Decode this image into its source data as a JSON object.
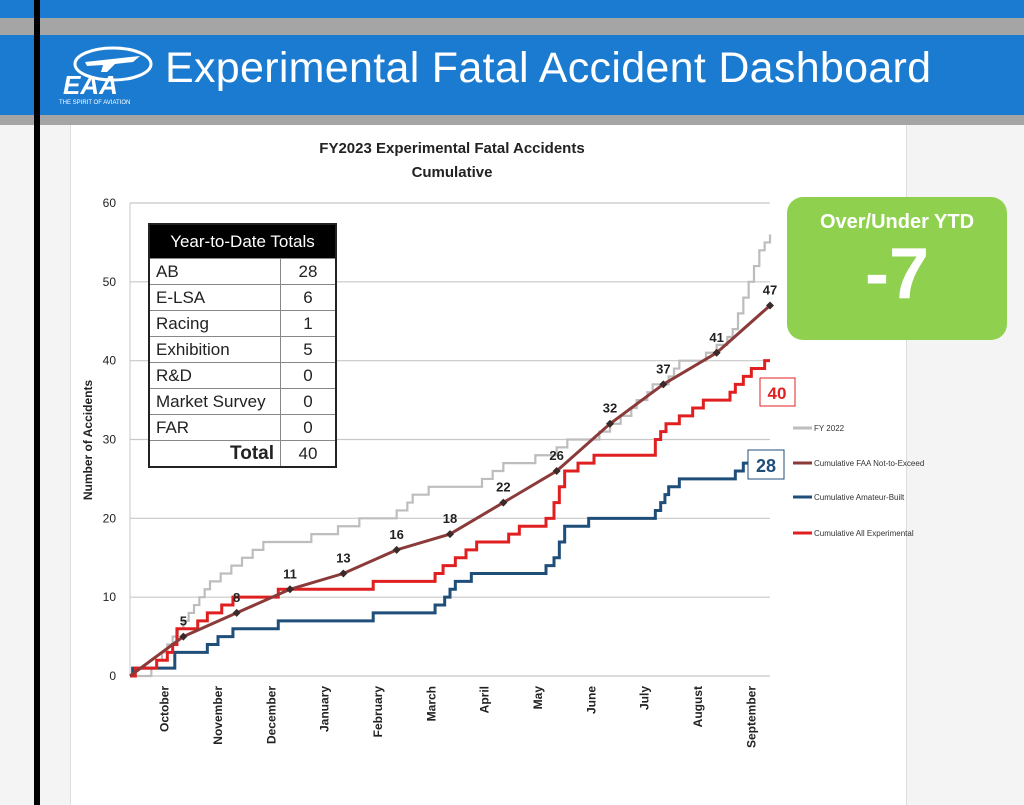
{
  "header": {
    "title": "Experimental Fatal Accident Dashboard",
    "logo_text": "EAA",
    "logo_tagline": "THE SPIRIT OF AVIATION"
  },
  "over_under": {
    "label": "Over/Under YTD",
    "value": "-7"
  },
  "ytd_table": {
    "title": "Year-to-Date Totals",
    "rows": [
      {
        "label": "AB",
        "value": "28"
      },
      {
        "label": "E-LSA",
        "value": "6"
      },
      {
        "label": "Racing",
        "value": "1"
      },
      {
        "label": "Exhibition",
        "value": "5"
      },
      {
        "label": "R&D",
        "value": "0"
      },
      {
        "label": "Market Survey",
        "value": "0"
      },
      {
        "label": "FAR",
        "value": "0"
      }
    ],
    "total_label": "Total",
    "total_value": "40"
  },
  "chart_data": {
    "type": "line",
    "title": "FY2023 Experimental Fatal Accidents",
    "subtitle": "Cumulative",
    "xlabel": "",
    "ylabel": "Number of Accidents",
    "ylim": [
      0,
      60
    ],
    "yticks": [
      0,
      10,
      20,
      30,
      40,
      50,
      60
    ],
    "xlim_months": [
      0,
      12
    ],
    "categories": [
      "October",
      "November",
      "December",
      "January",
      "February",
      "March",
      "April",
      "May",
      "June",
      "July",
      "August",
      "September"
    ],
    "legend_position": "right",
    "series": [
      {
        "name": "FY 2022",
        "color": "#bdbdbd",
        "step": true,
        "points": [
          [
            0,
            0
          ],
          [
            0.3,
            0
          ],
          [
            0.4,
            1
          ],
          [
            0.5,
            2
          ],
          [
            0.6,
            3
          ],
          [
            0.7,
            4
          ],
          [
            0.8,
            5
          ],
          [
            0.9,
            6
          ],
          [
            1.0,
            7
          ],
          [
            1.1,
            8
          ],
          [
            1.2,
            9
          ],
          [
            1.3,
            10
          ],
          [
            1.4,
            11
          ],
          [
            1.5,
            12
          ],
          [
            1.7,
            13
          ],
          [
            1.9,
            14
          ],
          [
            2.1,
            15
          ],
          [
            2.3,
            16
          ],
          [
            2.5,
            17
          ],
          [
            3.4,
            18
          ],
          [
            3.9,
            19
          ],
          [
            4.3,
            20
          ],
          [
            5.0,
            21
          ],
          [
            5.2,
            22
          ],
          [
            5.3,
            23
          ],
          [
            5.6,
            24
          ],
          [
            6.6,
            25
          ],
          [
            6.8,
            26
          ],
          [
            7.0,
            27
          ],
          [
            7.6,
            28
          ],
          [
            8.0,
            29
          ],
          [
            8.2,
            30
          ],
          [
            8.8,
            31
          ],
          [
            9.0,
            32
          ],
          [
            9.2,
            33
          ],
          [
            9.4,
            34
          ],
          [
            9.5,
            35
          ],
          [
            9.7,
            36
          ],
          [
            9.8,
            37
          ],
          [
            10.1,
            38
          ],
          [
            10.2,
            39
          ],
          [
            10.3,
            40
          ],
          [
            10.8,
            41
          ],
          [
            11.0,
            42
          ],
          [
            11.2,
            43
          ],
          [
            11.3,
            44
          ],
          [
            11.4,
            46
          ],
          [
            11.5,
            48
          ],
          [
            11.6,
            50
          ],
          [
            11.7,
            52
          ],
          [
            11.8,
            54
          ],
          [
            11.9,
            55
          ],
          [
            12.0,
            56
          ]
        ]
      },
      {
        "name": "Cumulative FAA Not-to-Exceed",
        "color": "#8b3a3a",
        "step": false,
        "points": [
          [
            0,
            0
          ],
          [
            1,
            5
          ],
          [
            2,
            8
          ],
          [
            3,
            11
          ],
          [
            4,
            13
          ],
          [
            5,
            16
          ],
          [
            6,
            18
          ],
          [
            7,
            22
          ],
          [
            8,
            26
          ],
          [
            9,
            32
          ],
          [
            10,
            37
          ],
          [
            11,
            41
          ],
          [
            12,
            47
          ]
        ],
        "labels": [
          5,
          8,
          11,
          13,
          16,
          18,
          22,
          26,
          32,
          37,
          41,
          47
        ]
      },
      {
        "name": "Cumulative Amateur-Built",
        "color": "#1f4e79",
        "step": true,
        "points": [
          [
            0,
            0
          ],
          [
            0.05,
            1
          ],
          [
            0.84,
            3
          ],
          [
            1.45,
            4
          ],
          [
            1.65,
            5
          ],
          [
            1.93,
            6
          ],
          [
            2.78,
            7
          ],
          [
            4.56,
            8
          ],
          [
            5.72,
            9
          ],
          [
            5.9,
            10
          ],
          [
            6.0,
            11
          ],
          [
            6.1,
            12
          ],
          [
            6.4,
            13
          ],
          [
            7.8,
            14
          ],
          [
            7.95,
            15
          ],
          [
            8.05,
            17
          ],
          [
            8.15,
            19
          ],
          [
            8.6,
            20
          ],
          [
            9.85,
            21
          ],
          [
            9.95,
            22
          ],
          [
            10.03,
            23
          ],
          [
            10.1,
            24
          ],
          [
            10.3,
            25
          ],
          [
            11.35,
            26
          ],
          [
            11.5,
            27
          ],
          [
            11.95,
            28
          ],
          [
            12,
            28
          ]
        ]
      },
      {
        "name": "Cumulative All Experimental",
        "color": "#e02020",
        "step": true,
        "points": [
          [
            0,
            0
          ],
          [
            0.1,
            1
          ],
          [
            0.5,
            2
          ],
          [
            0.7,
            3
          ],
          [
            0.8,
            4
          ],
          [
            0.88,
            6
          ],
          [
            1.27,
            7
          ],
          [
            1.45,
            8
          ],
          [
            1.72,
            9
          ],
          [
            1.93,
            10
          ],
          [
            2.78,
            11
          ],
          [
            4.56,
            12
          ],
          [
            5.72,
            13
          ],
          [
            5.87,
            14
          ],
          [
            6.1,
            15
          ],
          [
            6.3,
            16
          ],
          [
            6.5,
            17
          ],
          [
            7.1,
            18
          ],
          [
            7.3,
            19
          ],
          [
            7.8,
            20
          ],
          [
            7.95,
            22
          ],
          [
            8.05,
            24
          ],
          [
            8.15,
            26
          ],
          [
            8.4,
            27
          ],
          [
            8.7,
            28
          ],
          [
            9.85,
            30
          ],
          [
            9.95,
            31
          ],
          [
            10.05,
            32
          ],
          [
            10.3,
            33
          ],
          [
            10.55,
            34
          ],
          [
            10.75,
            35
          ],
          [
            11.25,
            36
          ],
          [
            11.35,
            37
          ],
          [
            11.5,
            38
          ],
          [
            11.65,
            39
          ],
          [
            11.9,
            40
          ],
          [
            12,
            40
          ]
        ]
      }
    ],
    "annotations": [
      {
        "text": "40",
        "series": "Cumulative All Experimental",
        "color": "#e02020"
      },
      {
        "text": "28",
        "series": "Cumulative Amateur-Built",
        "color": "#1f4e79"
      }
    ]
  }
}
